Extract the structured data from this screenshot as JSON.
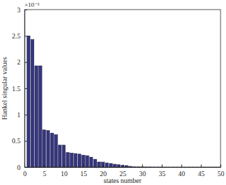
{
  "chart_data": {
    "type": "bar",
    "x_label": "states number",
    "y_label": "Hankel singular values",
    "annotation": "×10⁻³",
    "x": [
      1,
      2,
      3,
      4,
      5,
      6,
      7,
      8,
      9,
      10,
      11,
      12,
      13,
      14,
      15,
      16,
      17,
      18,
      19,
      20,
      21,
      22,
      23,
      24,
      25,
      26,
      27,
      28,
      29,
      30,
      31,
      32,
      33,
      34,
      35,
      36,
      37,
      38,
      39,
      40,
      41,
      42,
      43,
      44,
      45,
      46,
      47,
      48,
      49,
      50
    ],
    "values": [
      2.5,
      2.43,
      1.93,
      1.93,
      0.71,
      0.7,
      0.65,
      0.62,
      0.42,
      0.42,
      0.28,
      0.27,
      0.26,
      0.25,
      0.23,
      0.22,
      0.19,
      0.15,
      0.1,
      0.095,
      0.08,
      0.07,
      0.055,
      0.05,
      0.035,
      0.03,
      0.015,
      0.01,
      0.005,
      0.004,
      0.003,
      0.003,
      0.002,
      0.002,
      0.002,
      0.001,
      0.001,
      0.001,
      0.001,
      0.001,
      0.001,
      0.001,
      0.001,
      0.001,
      0.001,
      0.001,
      0.001,
      0.001,
      0.001,
      0.001
    ],
    "color": "#35357f",
    "xlim": [
      0,
      50
    ],
    "xticks": [
      0,
      5,
      10,
      15,
      20,
      25,
      30,
      35,
      40,
      45,
      50
    ],
    "ylim": [
      0,
      3
    ],
    "yticks": [
      0,
      0.5,
      1,
      1.5,
      2,
      2.5,
      3
    ],
    "grid": false
  }
}
